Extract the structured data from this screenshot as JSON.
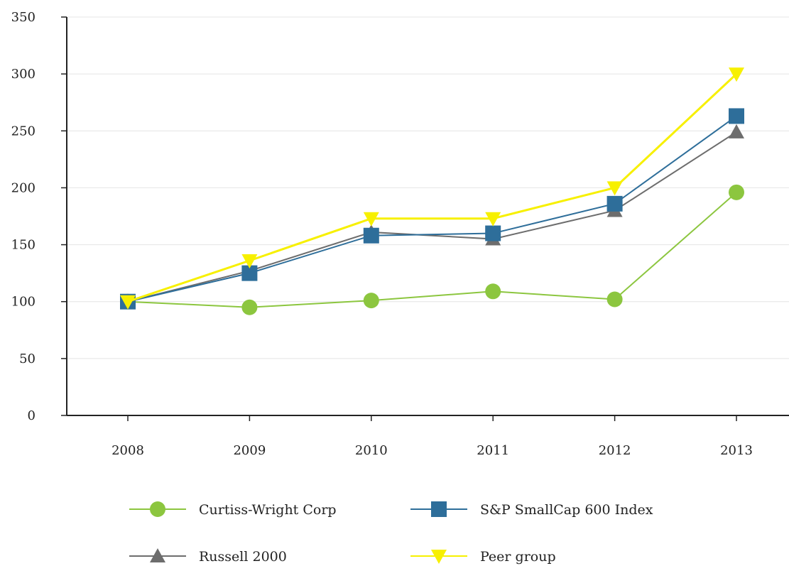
{
  "chart_data": {
    "type": "line",
    "title": "",
    "xlabel": "",
    "ylabel": "",
    "categories": [
      "2008",
      "2009",
      "2010",
      "2011",
      "2012",
      "2013"
    ],
    "ylim": [
      0,
      350
    ],
    "yticks": [
      0,
      50,
      100,
      150,
      200,
      250,
      300,
      350
    ],
    "grid": "horizontal",
    "legend_position": "bottom",
    "series": [
      {
        "name": "Curtiss-Wright Corp",
        "marker": "circle",
        "color": "#8cc63f",
        "values": [
          100,
          95,
          101,
          109,
          102,
          196
        ]
      },
      {
        "name": "S&P SmallCap 600 Index",
        "marker": "square",
        "color": "#2e6e9a",
        "values": [
          100,
          125,
          158,
          160,
          186,
          263
        ]
      },
      {
        "name": "Russell 2000",
        "marker": "triangle-up",
        "color": "#6d6d6d",
        "values": [
          100,
          127,
          161,
          155,
          180,
          249
        ]
      },
      {
        "name": "Peer group",
        "marker": "triangle-down",
        "color": "#f7f000",
        "values": [
          100,
          136,
          173,
          173,
          200,
          300
        ]
      }
    ]
  }
}
